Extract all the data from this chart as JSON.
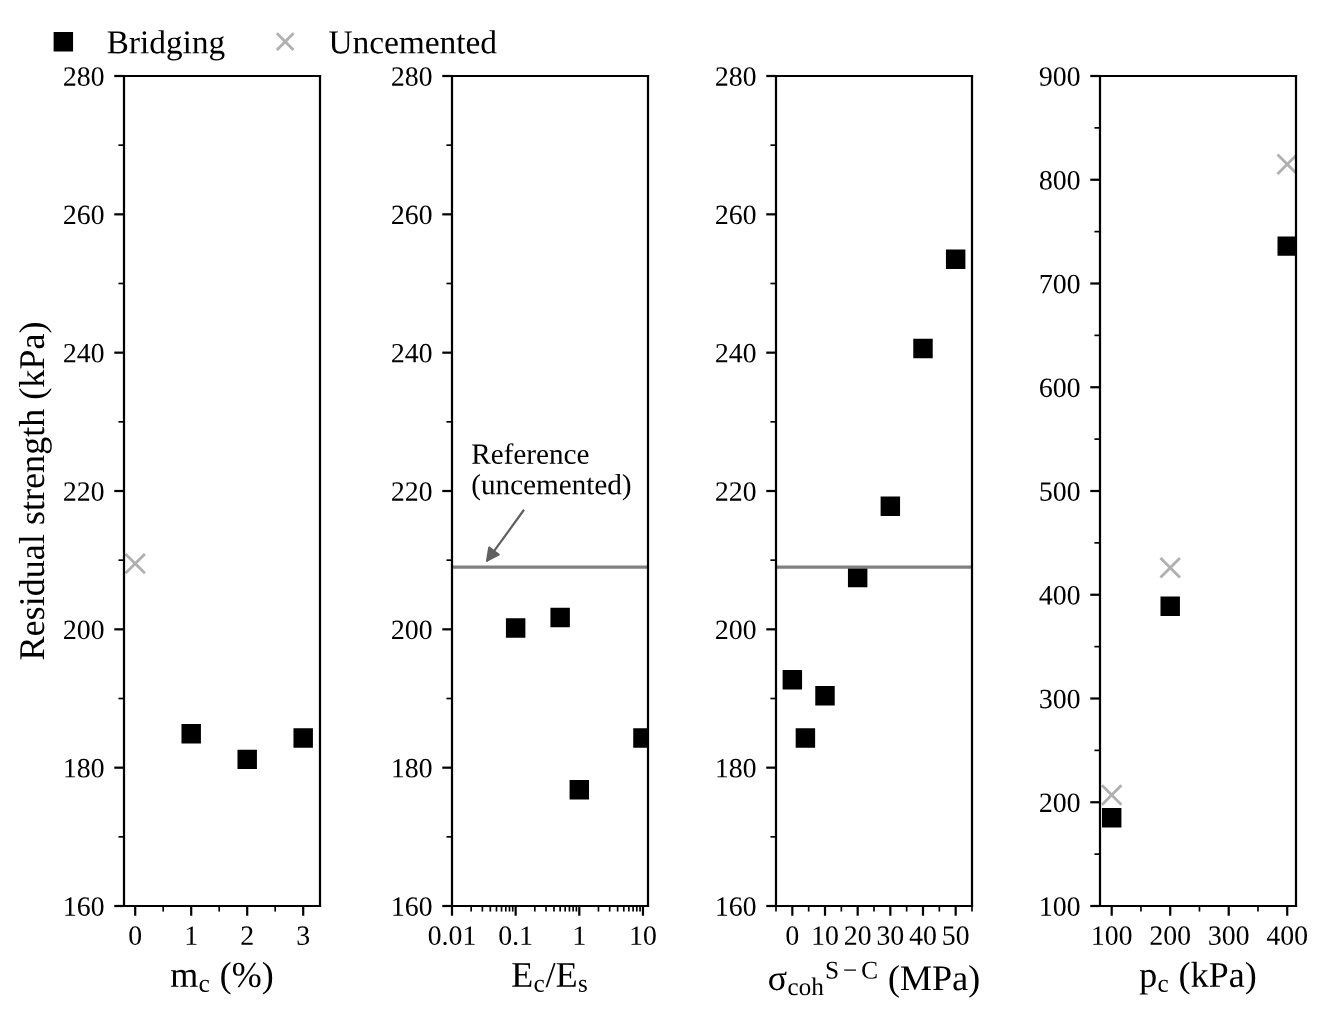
{
  "chart_data": [
    {
      "type": "scatter",
      "xlabel": "m$_{c}$ (%)",
      "ylabel": "Residual strength (kPa)",
      "legend": "top",
      "xlim": [
        -0.2,
        3.3
      ],
      "xticks": [
        0,
        1,
        2,
        3
      ],
      "ylim": [
        160,
        280
      ],
      "yticks": [
        160,
        180,
        200,
        220,
        240,
        260,
        280
      ],
      "series": [
        {
          "name": "Bridging",
          "color": "#000000",
          "marker": "square",
          "x": [
            1,
            2,
            3
          ],
          "values": [
            184.9,
            181.2,
            184.3
          ]
        },
        {
          "name": "Uncemented",
          "color": "#b0b0b0",
          "marker": "cross",
          "x": [
            0
          ],
          "values": [
            209.5
          ]
        }
      ]
    },
    {
      "type": "scatter",
      "xlabel": "E$_{c}$/E$_{s}$",
      "log": "x",
      "xlim": [
        0.01,
        12
      ],
      "xticks": [
        {
          "value": 0.01,
          "label": "0.01"
        },
        0.1,
        1,
        10
      ],
      "ylim": [
        160,
        280
      ],
      "yticks": [
        160,
        180,
        200,
        220,
        240,
        260,
        280
      ],
      "ref_lines": [
        {
          "axis": "y",
          "value": 209,
          "color": "#808080"
        }
      ],
      "annotations": [
        {
          "text": "Reference\n(uncemented)",
          "x": 0.03,
          "y": 209
        }
      ],
      "series": [
        {
          "color": "#000000",
          "marker": "square",
          "x": [
            0.1,
            0.5,
            1,
            10
          ],
          "values": [
            200.2,
            201.7,
            176.8,
            184.3
          ]
        }
      ]
    },
    {
      "type": "scatter",
      "xlabel": "σ$_{coh}$$^{S−C}$ (MPa)",
      "xlim": [
        -5,
        55
      ],
      "xticks": [
        0,
        10,
        20,
        30,
        40,
        50
      ],
      "ylim": [
        160,
        280
      ],
      "yticks": [
        160,
        180,
        200,
        220,
        240,
        260,
        280
      ],
      "ref_lines": [
        {
          "axis": "y",
          "value": 209,
          "color": "#808080"
        }
      ],
      "series": [
        {
          "color": "#000000",
          "marker": "square",
          "x": [
            0,
            4,
            10,
            20,
            30,
            40,
            50
          ],
          "values": [
            192.7,
            184.3,
            190.4,
            207.5,
            217.8,
            240.6,
            253.5
          ]
        }
      ]
    },
    {
      "type": "scatter",
      "xlabel": "p$_{c}$ (kPa)",
      "xlim": [
        80,
        415
      ],
      "xticks": [
        100,
        200,
        300,
        400
      ],
      "ylim": [
        100,
        900
      ],
      "yticks": [
        100,
        200,
        300,
        400,
        500,
        600,
        700,
        800,
        900
      ],
      "series": [
        {
          "color": "#000000",
          "marker": "square",
          "x": [
            100,
            200,
            400
          ],
          "values": [
            185,
            389,
            736
          ]
        },
        {
          "color": "#b0b0b0",
          "marker": "cross",
          "x": [
            100,
            200,
            400
          ],
          "values": [
            207,
            426,
            815
          ]
        }
      ]
    }
  ]
}
